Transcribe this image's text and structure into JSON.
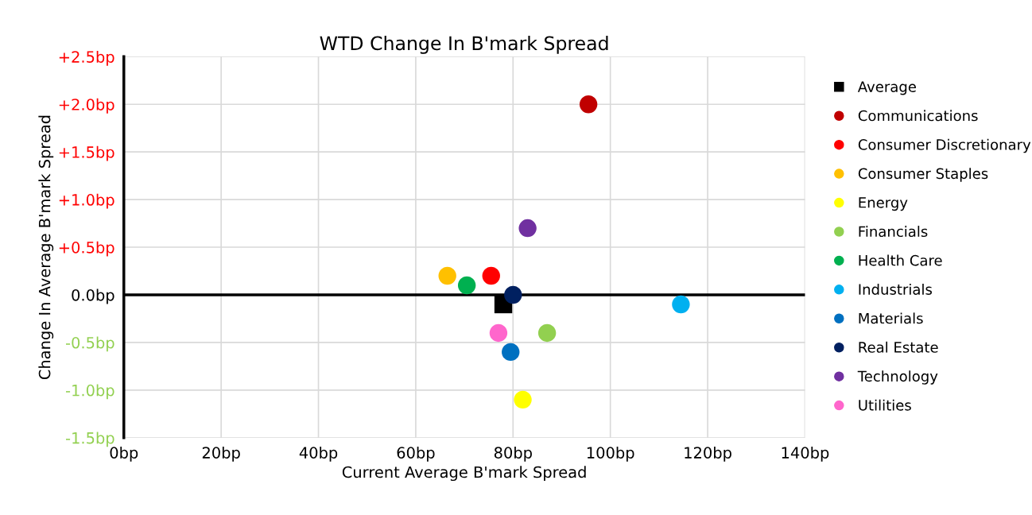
{
  "chart_data": {
    "type": "scatter",
    "title": "WTD Change In B'mark Spread",
    "xlabel": "Current Average B'mark Spread",
    "ylabel": "Change In Average B'mark Spread",
    "series": [
      {
        "name": "Average",
        "color": "#000000",
        "marker": "square",
        "x": [
          78
        ],
        "values": [
          -0.1
        ]
      },
      {
        "name": "Communications",
        "color": "#c00000",
        "x": [
          95.5
        ],
        "values": [
          2.0
        ]
      },
      {
        "name": "Consumer Discretionary",
        "color": "#ff0000",
        "x": [
          75.5
        ],
        "values": [
          0.2
        ]
      },
      {
        "name": "Consumer Staples",
        "color": "#ffc000",
        "x": [
          66.5
        ],
        "values": [
          0.2
        ]
      },
      {
        "name": "Energy",
        "color": "#ffff00",
        "x": [
          82
        ],
        "values": [
          -1.1
        ]
      },
      {
        "name": "Financials",
        "color": "#92d050",
        "x": [
          87
        ],
        "values": [
          -0.4
        ]
      },
      {
        "name": "Health Care",
        "color": "#00b050",
        "x": [
          70.5
        ],
        "values": [
          0.1
        ]
      },
      {
        "name": "Industrials",
        "color": "#00b0f0",
        "x": [
          114.5
        ],
        "values": [
          -0.1
        ]
      },
      {
        "name": "Materials",
        "color": "#0070c0",
        "x": [
          79.5
        ],
        "values": [
          -0.6
        ]
      },
      {
        "name": "Real Estate",
        "color": "#002060",
        "x": [
          80
        ],
        "values": [
          0.0
        ]
      },
      {
        "name": "Technology",
        "color": "#7030a0",
        "x": [
          83
        ],
        "values": [
          0.7
        ]
      },
      {
        "name": "Utilities",
        "color": "#ff66cc",
        "x": [
          77
        ],
        "values": [
          -0.4
        ]
      }
    ],
    "marker": "circle",
    "xlim": [
      0,
      140
    ],
    "ylim": [
      -1.5,
      2.5
    ],
    "xticks": [
      {
        "value": 0,
        "label": "0bp"
      },
      {
        "value": 20,
        "label": "20bp"
      },
      {
        "value": 40,
        "label": "40bp"
      },
      {
        "value": 60,
        "label": "60bp"
      },
      {
        "value": 80,
        "label": "80bp"
      },
      {
        "value": 100,
        "label": "100bp"
      },
      {
        "value": 120,
        "label": "120bp"
      },
      {
        "value": 140,
        "label": "140bp"
      }
    ],
    "yticks": [
      {
        "value": -1.5,
        "label": "-1.5bp"
      },
      {
        "value": -1.0,
        "label": "-1.0bp"
      },
      {
        "value": -0.5,
        "label": "-0.5bp"
      },
      {
        "value": 0,
        "label": "0.0bp"
      },
      {
        "value": 0.5,
        "label": "+0.5bp"
      },
      {
        "value": 1.0,
        "label": "+1.0bp"
      },
      {
        "value": 1.5,
        "label": "+1.5bp"
      },
      {
        "value": 2.0,
        "label": "+2.0bp"
      },
      {
        "value": 2.5,
        "label": "+2.5bp"
      }
    ],
    "grid": true,
    "legend": "right"
  }
}
